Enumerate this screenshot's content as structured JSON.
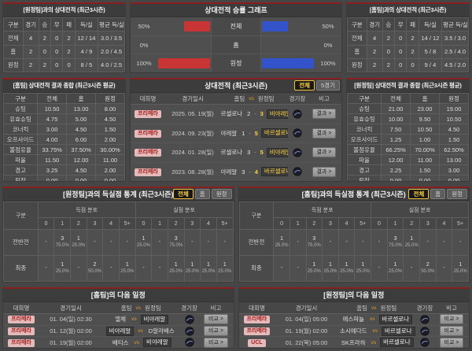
{
  "colors": {
    "accent_red": "#8a1f1f",
    "bar_red": "#c93434",
    "bar_blue": "#3253c9",
    "highlight_yellow": "#ffd23f"
  },
  "icons": {
    "venue": "stadium-icon"
  },
  "pa": {
    "title": "[원정팀]과의 상대전적 (최근3시즌)",
    "cols": [
      "구분",
      "경기",
      "승",
      "무",
      "패",
      "득/실",
      "평균 득/실"
    ],
    "rows": [
      [
        "전체",
        "4",
        "2",
        "0",
        "2",
        "12 / 14",
        "3.0 / 3.5"
      ],
      [
        "홈",
        "2",
        "0",
        "0",
        "2",
        "4 / 9",
        "2.0 / 4.5"
      ],
      [
        "원정",
        "2",
        "2",
        "0",
        "0",
        "8 / 5",
        "4.0 / 2.5"
      ]
    ]
  },
  "pg": {
    "title": "상대전적 승률 그래프",
    "rows": [
      {
        "lp": "50%",
        "lw": "50%",
        "label": "전체",
        "rw": "50%",
        "rp": "50%"
      },
      {
        "lp": "0%",
        "lw": "0%",
        "label": "홈",
        "rw": "0%",
        "rp": "0%"
      },
      {
        "lp": "100%",
        "lw": "100%",
        "label": "원정",
        "rw": "100%",
        "rp": "100%"
      }
    ]
  },
  "pc": {
    "title": "[홈팀]과의 상대전적 (최근3시즌)",
    "cols": [
      "구분",
      "경기",
      "승",
      "무",
      "패",
      "득/실",
      "평균 득/실"
    ],
    "rows": [
      [
        "전체",
        "4",
        "2",
        "0",
        "2",
        "14 / 12",
        "3.5 / 3.0"
      ],
      [
        "홈",
        "2",
        "0",
        "0",
        "2",
        "5 / 8",
        "2.5 / 4.0"
      ],
      [
        "원정",
        "2",
        "2",
        "0",
        "0",
        "9 / 4",
        "4.5 / 2.0"
      ]
    ]
  },
  "pd": {
    "title": "[홈팀] 상대전적 결과 종합 (최근3시즌 평균)",
    "cols": [
      "구분",
      "전체",
      "홈",
      "원정"
    ],
    "rows": [
      [
        "슈팅",
        "10.50",
        "13.00",
        "8.00"
      ],
      [
        "유효슈팅",
        "4.75",
        "5.00",
        "4.50"
      ],
      [
        "코너킥",
        "3.00",
        "4.50",
        "1.50"
      ],
      [
        "오프사이드",
        "4.00",
        "6.00",
        "2.00"
      ],
      [
        "볼점유율",
        "33.75%",
        "37.50%",
        "30.00%"
      ],
      [
        "파울",
        "11.50",
        "12.00",
        "11.00"
      ],
      [
        "경고",
        "3.25",
        "4.50",
        "2.00"
      ],
      [
        "퇴장",
        "0.00",
        "0.00",
        "0.00"
      ]
    ]
  },
  "pf": {
    "title": "[원정팀] 상대전적 결과 종합 (최근3시즌 평균)",
    "cols": [
      "구분",
      "전체",
      "홈",
      "원정"
    ],
    "rows": [
      [
        "슈팅",
        "21.00",
        "23.00",
        "19.00"
      ],
      [
        "유효슈팅",
        "10.00",
        "9.50",
        "10.50"
      ],
      [
        "코너킥",
        "7.50",
        "10.50",
        "4.50"
      ],
      [
        "오프사이드",
        "1.25",
        "1.00",
        "1.50"
      ],
      [
        "볼점유율",
        "66.25%",
        "70.00%",
        "62.50%"
      ],
      [
        "파울",
        "12.00",
        "11.00",
        "13.00"
      ],
      [
        "경고",
        "2.25",
        "1.50",
        "3.00"
      ],
      [
        "퇴장",
        "0.00",
        "0.00",
        "0.00"
      ]
    ]
  },
  "pe": {
    "title": "상대전적 (최근3시즌)",
    "btn_all": "전체",
    "btn_5": "5경기",
    "cols": {
      "lg": "대회명",
      "dt": "경기일시",
      "h": "홈팀",
      "vs": "vs",
      "a": "원정팀",
      "vn": "경기장",
      "nt": "비고"
    },
    "note_label": "결과 >",
    "rows": [
      {
        "lg": "프리메라",
        "dt": "2025. 05. 19(월)",
        "h": "바르셀로나",
        "hs": "2",
        "as": "3",
        "a": "비야레알"
      },
      {
        "lg": "프리메라",
        "dt": "2024. 09. 23(월)",
        "h": "비야레알",
        "hs": "1",
        "as": "5",
        "a": "바르셀로나"
      },
      {
        "lg": "프리메라",
        "dt": "2024. 01. 28(일)",
        "h": "바르셀로나",
        "hs": "3",
        "as": "5",
        "a": "비야레알"
      },
      {
        "lg": "프리메라",
        "dt": "2023. 08. 28(월)",
        "h": "비야레알",
        "hs": "3",
        "as": "4",
        "a": "바르셀로나"
      }
    ]
  },
  "gl": {
    "title": "[원정팀]과의 득실점 통계 (최근3시즌)",
    "btn_all": "전체",
    "btn_home": "홈",
    "btn_away": "원정",
    "head": {
      "g": "구분",
      "s": "득점 분포",
      "c": "실점 분포",
      "n": [
        "0",
        "1",
        "2",
        "3",
        "4",
        "5+"
      ]
    },
    "rows": [
      {
        "t": "전반전",
        "s": [
          [
            "-",
            ""
          ],
          [
            "3",
            "75.0%"
          ],
          [
            "1",
            "25.0%"
          ],
          [
            "-",
            ""
          ],
          [
            "-",
            ""
          ],
          [
            "-",
            ""
          ]
        ],
        "c": [
          [
            "1",
            "25.0%"
          ],
          [
            "-",
            ""
          ],
          [
            "3",
            "75.0%"
          ],
          [
            "-",
            ""
          ],
          [
            "-",
            ""
          ],
          [
            "-",
            ""
          ]
        ]
      },
      {
        "t": "최종",
        "s": [
          [
            "-",
            ""
          ],
          [
            "1",
            "25.0%"
          ],
          [
            "-",
            ""
          ],
          [
            "2",
            "50.0%"
          ],
          [
            "-",
            ""
          ],
          [
            "1",
            "25.0%"
          ]
        ],
        "c": [
          [
            "-",
            ""
          ],
          [
            "-",
            ""
          ],
          [
            "1",
            "25.0%"
          ],
          [
            "1",
            "25.0%"
          ],
          [
            "1",
            "25.0%"
          ],
          [
            "1",
            "25.0%"
          ]
        ]
      }
    ]
  },
  "gr": {
    "title": "[홈팀]과의 득실점 통계 (최근3시즌)",
    "btn_all": "전체",
    "btn_home": "홈",
    "btn_away": "원정",
    "head": {
      "g": "구분",
      "s": "득점 분포",
      "c": "실점 분포",
      "n": [
        "0",
        "1",
        "2",
        "3",
        "4",
        "5+"
      ]
    },
    "rows": [
      {
        "t": "전반전",
        "s": [
          [
            "1",
            "25.0%"
          ],
          [
            "-",
            ""
          ],
          [
            "3",
            "75.0%"
          ],
          [
            "-",
            ""
          ],
          [
            "-",
            ""
          ],
          [
            "-",
            ""
          ]
        ],
        "c": [
          [
            "-",
            ""
          ],
          [
            "3",
            "75.0%"
          ],
          [
            "1",
            "25.0%"
          ],
          [
            "-",
            ""
          ],
          [
            "-",
            ""
          ],
          [
            "-",
            ""
          ]
        ]
      },
      {
        "t": "최종",
        "s": [
          [
            "-",
            ""
          ],
          [
            "-",
            ""
          ],
          [
            "1",
            "25.0%"
          ],
          [
            "1",
            "25.0%"
          ],
          [
            "1",
            "25.0%"
          ],
          [
            "1",
            "25.0%"
          ]
        ],
        "c": [
          [
            "-",
            ""
          ],
          [
            "1",
            "25.0%"
          ],
          [
            "-",
            ""
          ],
          [
            "2",
            "50.0%"
          ],
          [
            "-",
            ""
          ],
          [
            "1",
            "25.0%"
          ]
        ]
      }
    ]
  },
  "sl": {
    "title": "[홈팀]의 다음 일정",
    "cols": {
      "lg": "대회명",
      "dt": "경기일시",
      "h": "홈팀",
      "vs": "vs",
      "a": "원정팀",
      "vn": "경기장",
      "nt": "비고"
    },
    "note_label": "비교 >",
    "rows": [
      {
        "lg": "프리메라",
        "dt": "01. 04(일) 02:30",
        "h": "엘체",
        "a": "비야레알"
      },
      {
        "lg": "프리메라",
        "dt": "01. 12(월) 02:00",
        "h": "비야레알",
        "a": "D알라베스"
      },
      {
        "lg": "프리메라",
        "dt": "01. 19(월) 02:00",
        "h": "베티스",
        "a": "비야레알"
      }
    ]
  },
  "sr": {
    "title": "[원정팀]의 다음 일정",
    "cols": {
      "lg": "대회명",
      "dt": "경기일시",
      "h": "홈팀",
      "vs": "vs",
      "a": "원정팀",
      "vn": "경기장",
      "nt": "비고"
    },
    "note_label": "비교 >",
    "rows": [
      {
        "lg": "프리메라",
        "dt": "01. 04(일) 05:00",
        "h": "에스파뇰",
        "a": "바르셀로나"
      },
      {
        "lg": "프리메라",
        "dt": "01. 19(월) 02:00",
        "h": "소시에다드",
        "a": "바르셀로나"
      },
      {
        "lg": "UCL",
        "dt": "01. 22(목) 05:00",
        "h": "SK프라하",
        "a": "바르셀로나"
      }
    ]
  }
}
